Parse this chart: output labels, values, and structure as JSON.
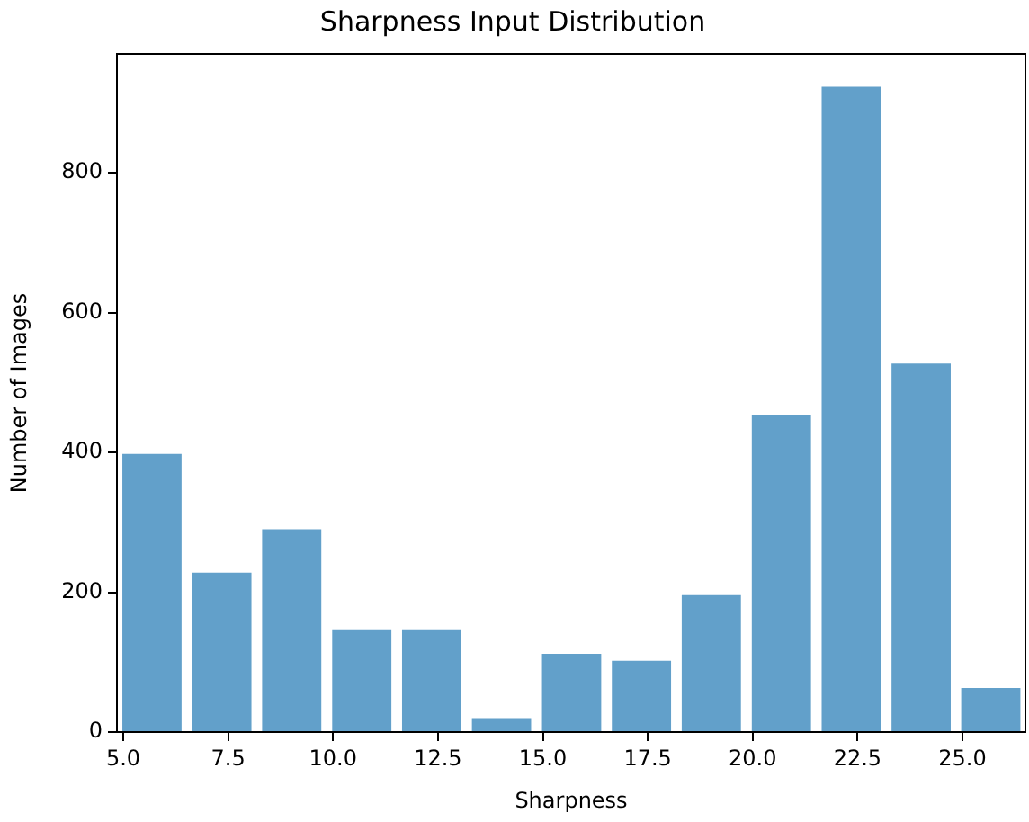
{
  "chart_data": {
    "type": "histogram",
    "title": "Sharpness Input Distribution",
    "xlabel": "Sharpness",
    "ylabel": "Number of Images",
    "bins": [
      4.85,
      6.52,
      8.18,
      9.85,
      11.52,
      13.18,
      14.85,
      16.52,
      18.18,
      19.85,
      21.52,
      23.18,
      24.85,
      26.5
    ],
    "values": [
      398,
      228,
      290,
      147,
      147,
      20,
      112,
      102,
      196,
      454,
      923,
      527,
      63
    ],
    "color": "#62a0ca",
    "xlim": [
      4.85,
      26.5
    ],
    "xticks": [
      {
        "value": 5,
        "label": "5.0"
      },
      {
        "value": 7.5,
        "label": "7.5"
      },
      {
        "value": 10,
        "label": "10.0"
      },
      {
        "value": 12.5,
        "label": "12.5"
      },
      {
        "value": 15,
        "label": "15.0"
      },
      {
        "value": 17.5,
        "label": "17.5"
      },
      {
        "value": 20,
        "label": "20.0"
      },
      {
        "value": 22.5,
        "label": "22.5"
      },
      {
        "value": 25,
        "label": "25.0"
      }
    ],
    "ylim": [
      0,
      970
    ],
    "yticks": [
      0,
      200,
      400,
      600,
      800
    ],
    "grid": false,
    "legend": false
  }
}
